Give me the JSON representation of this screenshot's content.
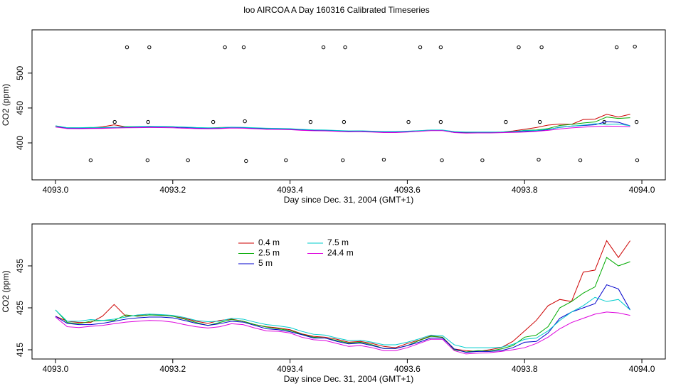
{
  "chart_data": [
    {
      "type": "line",
      "title": "loo AIRCOA A  Day 160316  Calibrated Timeseries",
      "xlabel": "Day since Dec. 31, 2004 (GMT+1)",
      "ylabel": "CO2 (ppm)",
      "xlim": [
        4092.96,
        4094.04
      ],
      "xticks": [
        {
          "value": 4093,
          "label": "4093.0"
        },
        {
          "value": 4093.2,
          "label": "4093.2"
        },
        {
          "value": 4093.4,
          "label": "4093.4"
        },
        {
          "value": 4093.6,
          "label": "4093.6"
        },
        {
          "value": 4093.8,
          "label": "4093.8"
        },
        {
          "value": 4094,
          "label": "4094.0"
        }
      ],
      "ylim": [
        347,
        562
      ],
      "yticks": [
        400,
        450,
        500
      ],
      "x": [
        4093,
        4093.02,
        4093.04,
        4093.06,
        4093.08,
        4093.1,
        4093.12,
        4093.14,
        4093.16,
        4093.18,
        4093.2,
        4093.22,
        4093.24,
        4093.26,
        4093.28,
        4093.3,
        4093.32,
        4093.34,
        4093.36,
        4093.38,
        4093.4,
        4093.42,
        4093.44,
        4093.46,
        4093.48,
        4093.5,
        4093.52,
        4093.54,
        4093.56,
        4093.58,
        4093.6,
        4093.62,
        4093.64,
        4093.66,
        4093.68,
        4093.7,
        4093.72,
        4093.74,
        4093.76,
        4093.78,
        4093.8,
        4093.82,
        4093.84,
        4093.86,
        4093.88,
        4093.9,
        4093.92,
        4093.94,
        4093.96,
        4093.98
      ],
      "series": [
        {
          "color": "#cc0000",
          "values": [
            423,
            421.8,
            421.5,
            421.5,
            423,
            425.8,
            423,
            423.2,
            423.5,
            423.3,
            423,
            422.5,
            421.8,
            421.3,
            422,
            422.3,
            421.8,
            421,
            420.5,
            420.2,
            419.8,
            418.8,
            418.2,
            418,
            417.5,
            416.8,
            417,
            416.5,
            415.8,
            415.5,
            416.5,
            417.3,
            418.3,
            418,
            415.2,
            414.8,
            414.6,
            415,
            415.5,
            417,
            419.5,
            422,
            425.5,
            427,
            426.5,
            433.5,
            434,
            441,
            437,
            441
          ]
        },
        {
          "color": "#00aa00",
          "values": [
            424.5,
            421.5,
            421.2,
            421.8,
            422,
            422,
            423.3,
            423,
            423.3,
            423.2,
            423,
            422.3,
            421.5,
            420.8,
            421.5,
            422.2,
            421.8,
            421,
            420.4,
            420,
            419.6,
            418.7,
            418,
            417.8,
            417.2,
            416.6,
            416.8,
            416.2,
            415.3,
            415.3,
            416,
            417.2,
            418.2,
            418,
            415,
            414.5,
            414.8,
            414.7,
            415.2,
            416,
            418,
            418.5,
            420.5,
            425,
            426.5,
            428.5,
            430,
            437,
            435,
            436
          ]
        },
        {
          "color": "#0000cc",
          "values": [
            423,
            421.3,
            421,
            421,
            421.3,
            421.8,
            422.3,
            422.6,
            422.8,
            422.8,
            422.6,
            422,
            421.3,
            420.8,
            421.2,
            421.8,
            421.6,
            420.8,
            420,
            419.8,
            419.3,
            418.6,
            417.8,
            417.8,
            417,
            416.4,
            416.6,
            416,
            415.3,
            415.3,
            416,
            416.8,
            417.8,
            417.8,
            415.2,
            414.4,
            414.6,
            414.6,
            414.8,
            415.5,
            416.8,
            417,
            419,
            422.5,
            424,
            425,
            426,
            430.5,
            429.5,
            424.5
          ]
        },
        {
          "color": "#00cccc",
          "values": [
            424.5,
            421.8,
            421.8,
            422.2,
            422,
            422.3,
            422.8,
            423.3,
            423.5,
            423.4,
            423.2,
            422.7,
            422,
            421.7,
            421.8,
            422.5,
            422.3,
            421.6,
            421,
            420.7,
            420.3,
            419.4,
            418.7,
            418.5,
            417.8,
            417.2,
            417.3,
            416.8,
            416.2,
            416.2,
            416.8,
            417.6,
            418.5,
            418.4,
            416.2,
            415.5,
            415.5,
            415.5,
            415.6,
            416.3,
            417.5,
            417.8,
            419.5,
            422,
            424,
            425.5,
            427.5,
            426.5,
            427,
            424.5
          ]
        },
        {
          "color": "#dd00dd",
          "values": [
            422.8,
            420.5,
            420.3,
            420.6,
            420.8,
            421.2,
            421.6,
            421.8,
            422,
            421.9,
            421.6,
            421,
            420.5,
            420.2,
            420.5,
            421.2,
            421,
            420.2,
            419.5,
            419.4,
            419,
            418,
            417.4,
            417.2,
            416.5,
            415.8,
            416,
            415.5,
            414.8,
            414.8,
            415.5,
            416.5,
            417.5,
            417.5,
            414.8,
            414,
            414.2,
            414.3,
            414.6,
            415,
            415.5,
            416.5,
            418,
            420,
            421.5,
            422.5,
            423.5,
            424,
            423.8,
            423.2
          ]
        }
      ],
      "points": {
        "color": "#000000",
        "x": [
          4093.122,
          4093.16,
          4093.289,
          4093.321,
          4093.457,
          4093.494,
          4093.622,
          4093.657,
          4093.79,
          4093.829,
          4093.957,
          4093.988,
          4093.101,
          4093.158,
          4093.269,
          4093.323,
          4093.435,
          4093.492,
          4093.602,
          4093.657,
          4093.768,
          4093.826,
          4093.936,
          4093.991,
          4093.06,
          4093.157,
          4093.226,
          4093.325,
          4093.393,
          4093.49,
          4093.56,
          4093.659,
          4093.728,
          4093.824,
          4093.895,
          4093.992
        ],
        "values": [
          537,
          537,
          537,
          537,
          537,
          537,
          537,
          537,
          537,
          537,
          537,
          538,
          430,
          430,
          430,
          431,
          430,
          430,
          430,
          430,
          430,
          430,
          430,
          430,
          375,
          375,
          375,
          374,
          375,
          375,
          376,
          375,
          375,
          376,
          375,
          375
        ]
      }
    },
    {
      "type": "line",
      "xlabel": "Day since Dec. 31, 2004 (GMT+1)",
      "ylabel": "CO2 (ppm)",
      "xlim": [
        4092.96,
        4094.04
      ],
      "xticks": [
        {
          "value": 4093,
          "label": "4093.0"
        },
        {
          "value": 4093.2,
          "label": "4093.2"
        },
        {
          "value": 4093.4,
          "label": "4093.4"
        },
        {
          "value": 4093.6,
          "label": "4093.6"
        },
        {
          "value": 4093.8,
          "label": "4093.8"
        },
        {
          "value": 4094,
          "label": "4094.0"
        }
      ],
      "ylim": [
        412.8,
        445
      ],
      "yticks": [
        415,
        425,
        435
      ],
      "x": [
        4093,
        4093.02,
        4093.04,
        4093.06,
        4093.08,
        4093.1,
        4093.12,
        4093.14,
        4093.16,
        4093.18,
        4093.2,
        4093.22,
        4093.24,
        4093.26,
        4093.28,
        4093.3,
        4093.32,
        4093.34,
        4093.36,
        4093.38,
        4093.4,
        4093.42,
        4093.44,
        4093.46,
        4093.48,
        4093.5,
        4093.52,
        4093.54,
        4093.56,
        4093.58,
        4093.6,
        4093.62,
        4093.64,
        4093.66,
        4093.68,
        4093.7,
        4093.72,
        4093.74,
        4093.76,
        4093.78,
        4093.8,
        4093.82,
        4093.84,
        4093.86,
        4093.88,
        4093.9,
        4093.92,
        4093.94,
        4093.96,
        4093.98
      ],
      "series": [
        {
          "name": "0.4 m",
          "color": "#cc0000",
          "values": [
            423,
            421.8,
            421.5,
            421.5,
            423,
            425.8,
            423,
            423.2,
            423.5,
            423.3,
            423,
            422.5,
            421.8,
            421.3,
            422,
            422.3,
            421.8,
            421,
            420.5,
            420.2,
            419.8,
            418.8,
            418.2,
            418,
            417.5,
            416.8,
            417,
            416.5,
            415.8,
            415.5,
            416.5,
            417.3,
            418.3,
            418,
            415.2,
            414.8,
            414.6,
            415,
            415.5,
            417,
            419.5,
            422,
            425.5,
            427,
            426.5,
            433.5,
            434,
            441,
            437,
            441
          ]
        },
        {
          "name": "2.5 m",
          "color": "#00aa00",
          "values": [
            424.5,
            421.5,
            421.2,
            421.8,
            422,
            422,
            423.3,
            423,
            423.3,
            423.2,
            423,
            422.3,
            421.5,
            420.8,
            421.5,
            422.2,
            421.8,
            421,
            420.4,
            420,
            419.6,
            418.7,
            418,
            417.8,
            417.2,
            416.6,
            416.8,
            416.2,
            415.3,
            415.3,
            416,
            417.2,
            418.2,
            418,
            415,
            414.5,
            414.8,
            414.7,
            415.2,
            416,
            418,
            418.5,
            420.5,
            425,
            426.5,
            428.5,
            430,
            437,
            435,
            436
          ]
        },
        {
          "name": "5 m",
          "color": "#0000cc",
          "values": [
            423,
            421.3,
            421,
            421,
            421.3,
            421.8,
            422.3,
            422.6,
            422.8,
            422.8,
            422.6,
            422,
            421.3,
            420.8,
            421.2,
            421.8,
            421.6,
            420.8,
            420,
            419.8,
            419.3,
            418.6,
            417.8,
            417.8,
            417,
            416.4,
            416.6,
            416,
            415.3,
            415.3,
            416,
            416.8,
            417.8,
            417.8,
            415.2,
            414.4,
            414.6,
            414.6,
            414.8,
            415.5,
            416.8,
            417,
            419,
            422.5,
            424,
            425,
            426,
            430.5,
            429.5,
            424.5
          ]
        },
        {
          "name": "7.5 m",
          "color": "#00cccc",
          "values": [
            424.5,
            421.8,
            421.8,
            422.2,
            422,
            422.3,
            422.8,
            423.3,
            423.5,
            423.4,
            423.2,
            422.7,
            422,
            421.7,
            421.8,
            422.5,
            422.3,
            421.6,
            421,
            420.7,
            420.3,
            419.4,
            418.7,
            418.5,
            417.8,
            417.2,
            417.3,
            416.8,
            416.2,
            416.2,
            416.8,
            417.6,
            418.5,
            418.4,
            416.2,
            415.5,
            415.5,
            415.5,
            415.6,
            416.3,
            417.5,
            417.8,
            419.5,
            422,
            424,
            425.5,
            427.5,
            426.5,
            427,
            424.5
          ]
        },
        {
          "name": "24.4 m",
          "color": "#dd00dd",
          "values": [
            422.8,
            420.5,
            420.3,
            420.6,
            420.8,
            421.2,
            421.6,
            421.8,
            422,
            421.9,
            421.6,
            421,
            420.5,
            420.2,
            420.5,
            421.2,
            421,
            420.2,
            419.5,
            419.4,
            419,
            418,
            417.4,
            417.2,
            416.5,
            415.8,
            416,
            415.5,
            414.8,
            414.8,
            415.5,
            416.5,
            417.5,
            417.5,
            414.8,
            414,
            414.2,
            414.3,
            414.6,
            415,
            415.5,
            416.5,
            418,
            420,
            421.5,
            422.5,
            423.5,
            424,
            423.8,
            423.2
          ]
        }
      ]
    }
  ]
}
